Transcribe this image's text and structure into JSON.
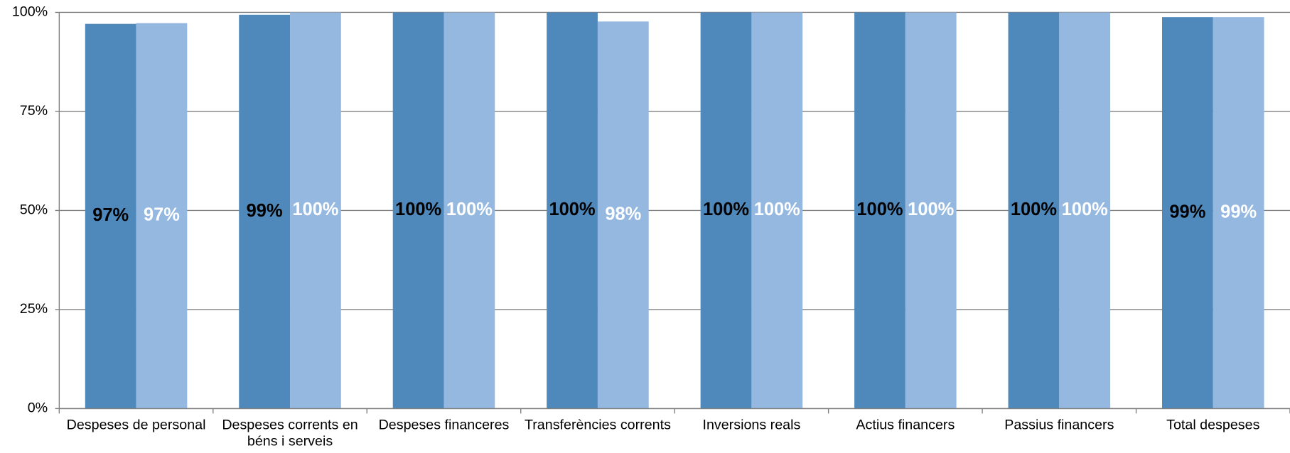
{
  "chart_data": {
    "type": "bar",
    "categories": [
      "Despeses de personal",
      "Despeses corrents en béns i serveis",
      "Despeses financeres",
      "Transferències corrents",
      "Inversions reals",
      "Actius financers",
      "Passius financers",
      "Total despeses"
    ],
    "series": [
      {
        "color": "#4f88bb",
        "values": [
          97.1,
          99.4,
          100,
          100,
          100,
          100,
          100,
          98.8
        ],
        "value_labels": [
          "97%",
          "99%",
          "100%",
          "100%",
          "100%",
          "100%",
          "100%",
          "99%"
        ]
      },
      {
        "color": "#95b8e0",
        "values": [
          97.3,
          100,
          100,
          97.7,
          100,
          100,
          100,
          98.8
        ],
        "value_labels": [
          "97%",
          "100%",
          "100%",
          "98%",
          "100%",
          "100%",
          "100%",
          "99%"
        ]
      }
    ],
    "ylim": [
      0,
      100
    ],
    "yticks": [
      {
        "value": 0,
        "label": "0%"
      },
      {
        "value": 25,
        "label": "25%"
      },
      {
        "value": 50,
        "label": "50%"
      },
      {
        "value": 75,
        "label": "75%"
      },
      {
        "value": 100,
        "label": "100%"
      }
    ],
    "grid": true
  }
}
